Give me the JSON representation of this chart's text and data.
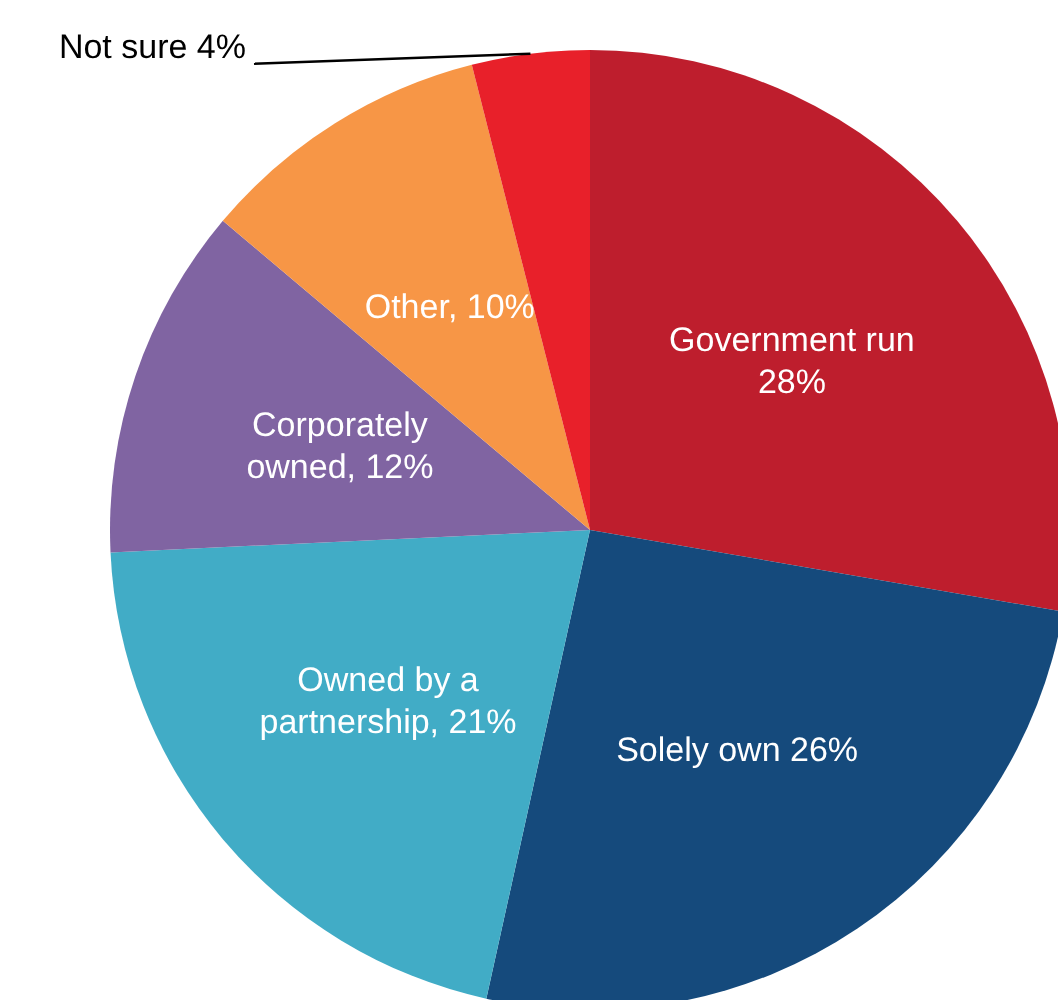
{
  "chart_data": {
    "type": "pie",
    "categories": [
      "Government run 28%",
      "Solely own 26%",
      "Owned by a partnership, 21%",
      "Corporately owned, 12%",
      "Other, 10%",
      "Not sure 4%"
    ],
    "values": [
      28,
      26,
      21,
      12,
      10,
      4
    ],
    "colors": [
      "#be1e2d",
      "#154a7c",
      "#41acc6",
      "#8064a2",
      "#f79646",
      "#e8202a"
    ],
    "legend": false
  }
}
